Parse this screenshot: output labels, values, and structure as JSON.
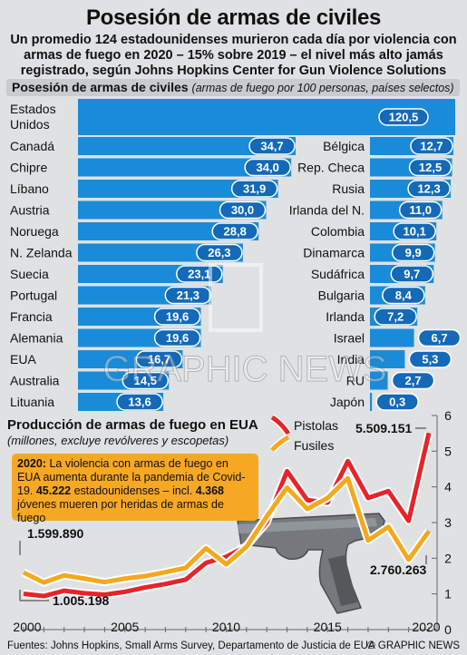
{
  "header": {
    "title": "Posesión de armas de civiles",
    "subtitle": "Un promedio 124 estadounidenses murieron cada día por violencia con armas de fuego en 2020 – 15% sobre 2019 – el nivel más alto jamás registrado, según Johns Hopkins Center for Gun Violence Solutions"
  },
  "ownership": {
    "heading": "Posesión de armas de civiles",
    "subheading": "(armas de fuego por 100 personas, países selectos)"
  },
  "production": {
    "heading": "Producción de armas de fuego en EUA",
    "subheading": "(millones, excluye revólveres y escopetas)"
  },
  "note": {
    "year": "2020:",
    "line1": " La violencia con armas de fuego en EUA aumenta durante la pandemia de Covid-19. ",
    "count1": "45.222",
    "line2": " estadounidenses – incl. ",
    "count2": "4.368",
    "line3": " jóvenes mueren por heridas de armas de fuego"
  },
  "footer": {
    "sources": "Fuentes: Johns Hopkins, Small Arms Survey, Departamento de Justicia de EUA",
    "credit": "© GRAPHIC NEWS"
  },
  "watermark": "GRAPHIC NEWS",
  "colors": {
    "bar_blue": "#1a8bd8",
    "label_blue": "#1469b8",
    "pistol_red": "#e8232a",
    "rifle_orange": "#f5a81d",
    "note_orange": "#f7a823",
    "background": "#dfe1e3"
  },
  "chart_data": [
    {
      "type": "bar",
      "orientation": "horizontal",
      "title": "Posesión de armas de civiles",
      "subtitle": "(armas de fuego por 100 personas, países selectos)",
      "top_bar": {
        "category": "Estados Unidos",
        "value": 120.5,
        "label": "120,5"
      },
      "left_column": {
        "categories": [
          "Canadá",
          "Chipre",
          "Líbano",
          "Austria",
          "Noruega",
          "N. Zelanda",
          "Suecia",
          "Portugal",
          "Francia",
          "Alemania",
          "EUA",
          "Australia",
          "Lituania"
        ],
        "values": [
          34.7,
          34.0,
          31.9,
          30.0,
          28.8,
          26.3,
          23.1,
          21.3,
          19.6,
          19.6,
          16.7,
          14.5,
          13.6
        ],
        "labels": [
          "34,7",
          "34,0",
          "31,9",
          "30,0",
          "28,8",
          "26,3",
          "23,1",
          "21,3",
          "19,6",
          "19,6",
          "16,7",
          "14,5",
          "13,6"
        ]
      },
      "right_column": {
        "categories": [
          "Bélgica",
          "Rep. Checa",
          "Rusia",
          "Irlanda del N.",
          "Colombia",
          "Dinamarca",
          "Sudáfrica",
          "Bulgaria",
          "Irlanda",
          "Israel",
          "India",
          "RU",
          "Japón"
        ],
        "values": [
          12.7,
          12.5,
          12.3,
          11.0,
          10.1,
          9.9,
          9.7,
          8.4,
          7.2,
          6.7,
          5.3,
          2.7,
          0.3
        ],
        "labels": [
          "12,7",
          "12,5",
          "12,3",
          "11,0",
          "10,1",
          "9,9",
          "9,7",
          "8,4",
          "7,2",
          "6,7",
          "5,3",
          "2,7",
          "0,3"
        ]
      }
    },
    {
      "type": "line",
      "title": "Producción de armas de fuego en EUA",
      "subtitle": "(millones, excluye revólveres y escopetas)",
      "x": [
        2000,
        2001,
        2002,
        2003,
        2004,
        2005,
        2006,
        2007,
        2008,
        2009,
        2010,
        2011,
        2012,
        2013,
        2014,
        2015,
        2016,
        2017,
        2018,
        2019,
        2020
      ],
      "xticks": [
        "2000",
        "2005",
        "2010",
        "2015",
        "2020"
      ],
      "yticks": [
        "0",
        "1",
        "2",
        "3",
        "4",
        "5",
        "6"
      ],
      "ylim": [
        0,
        6
      ],
      "series": [
        {
          "name": "Pistolas",
          "color": "#e8232a",
          "values": [
            1.005,
            0.94,
            1.09,
            1.02,
            0.98,
            1.06,
            1.18,
            1.28,
            1.4,
            1.87,
            2.04,
            2.34,
            3.01,
            4.44,
            3.63,
            3.56,
            4.72,
            3.69,
            3.88,
            3.05,
            5.51
          ]
        },
        {
          "name": "Fusiles",
          "color": "#f5a81d",
          "values": [
            1.6,
            1.32,
            1.52,
            1.43,
            1.33,
            1.43,
            1.5,
            1.61,
            1.73,
            2.28,
            1.83,
            2.32,
            3.17,
            3.98,
            3.38,
            3.69,
            4.24,
            2.5,
            2.88,
            1.96,
            2.76
          ]
        }
      ],
      "annotations": [
        {
          "text": "1.599.890",
          "series": "Fusiles",
          "x": 2000
        },
        {
          "text": "1.005.198",
          "series": "Pistolas",
          "x": 2000
        },
        {
          "text": "5.509.151",
          "series": "Pistolas",
          "x": 2020
        },
        {
          "text": "2.760.263",
          "series": "Fusiles",
          "x": 2020
        }
      ],
      "legend": "top-right"
    }
  ]
}
